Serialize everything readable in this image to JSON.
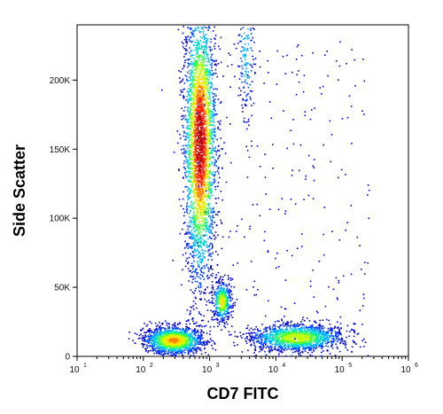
{
  "chart_data": {
    "type": "scatter",
    "title": "",
    "xlabel": "CD7 FITC",
    "ylabel": "Side Scatter",
    "x_scale": "log",
    "y_scale": "linear",
    "xlim": [
      10,
      1000000
    ],
    "ylim": [
      0,
      240000
    ],
    "grid": false,
    "legend": "none",
    "x_ticks": [
      {
        "value": 10,
        "label": "10",
        "exp": "1"
      },
      {
        "value": 100,
        "label": "10",
        "exp": "2"
      },
      {
        "value": 1000,
        "label": "10",
        "exp": "3"
      },
      {
        "value": 10000,
        "label": "10",
        "exp": "4"
      },
      {
        "value": 100000,
        "label": "10",
        "exp": "5"
      },
      {
        "value": 1000000,
        "label": "10",
        "exp": "6"
      }
    ],
    "y_ticks": [
      {
        "value": 0,
        "label": "0"
      },
      {
        "value": 50000,
        "label": "50K"
      },
      {
        "value": 100000,
        "label": "100K"
      },
      {
        "value": 150000,
        "label": "150K"
      },
      {
        "value": 200000,
        "label": "200K"
      }
    ],
    "colormap": [
      "#0000c8",
      "#0040ff",
      "#00b0ff",
      "#00e0c0",
      "#40ff40",
      "#c0ff00",
      "#ffe000",
      "#ff8000",
      "#ff2000",
      "#c00000"
    ],
    "populations": [
      {
        "x_center": 700,
        "y_center": 155000,
        "x_spread_log": 0.12,
        "y_spread": 50000,
        "count": 3200,
        "density_peak": 1.0
      },
      {
        "x_center": 280,
        "y_center": 12000,
        "x_spread_log": 0.22,
        "y_spread": 5000,
        "count": 1500,
        "density_peak": 0.75
      },
      {
        "x_center": 1500,
        "y_center": 40000,
        "x_spread_log": 0.07,
        "y_spread": 7000,
        "count": 500,
        "density_peak": 0.65
      },
      {
        "x_center": 20000,
        "y_center": 14000,
        "x_spread_log": 0.35,
        "y_spread": 5000,
        "count": 1500,
        "density_peak": 0.6
      },
      {
        "x_center": 3500,
        "y_center": 220000,
        "x_spread_log": 0.06,
        "y_spread": 25000,
        "count": 160,
        "density_peak": 0.3
      }
    ]
  }
}
